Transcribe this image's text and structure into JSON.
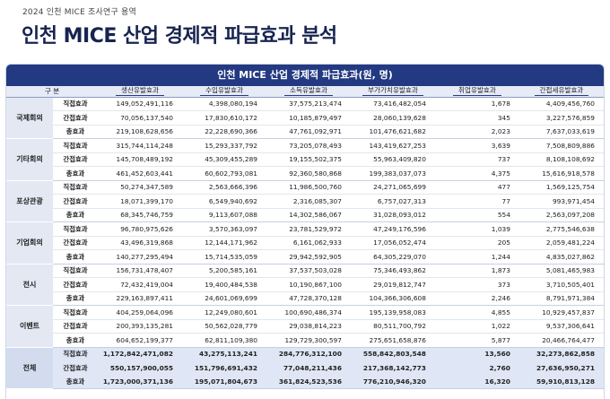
{
  "header": {
    "subtitle": "2024 인천 MICE 조사연구 용역",
    "title": "인천 MICE 산업 경제적 파급효과 분석"
  },
  "table": {
    "caption": "인천 MICE 산업 경제적 파급효과(원, 명)",
    "group_header": "구 분",
    "columns": [
      "생산유발효과",
      "수입유발효과",
      "소득유발효과",
      "부가가치유발효과",
      "취업유발효과",
      "간접세유발효과"
    ],
    "sub_labels": [
      "직접효과",
      "간접효과",
      "총효과"
    ],
    "groups": [
      {
        "name": "국제회의",
        "rows": [
          [
            "149,052,491,116",
            "4,398,080,194",
            "37,575,213,474",
            "73,416,482,054",
            "1,678",
            "4,409,456,760"
          ],
          [
            "70,056,137,540",
            "17,830,610,172",
            "10,185,879,497",
            "28,060,139,628",
            "345",
            "3,227,576,859"
          ],
          [
            "219,108,628,656",
            "22,228,690,366",
            "47,761,092,971",
            "101,476,621,682",
            "2,023",
            "7,637,033,619"
          ]
        ]
      },
      {
        "name": "기타회의",
        "rows": [
          [
            "315,744,114,248",
            "15,293,337,792",
            "73,205,078,493",
            "143,419,627,253",
            "3,639",
            "7,508,809,886"
          ],
          [
            "145,708,489,192",
            "45,309,455,289",
            "19,155,502,375",
            "55,963,409,820",
            "737",
            "8,108,108,692"
          ],
          [
            "461,452,603,441",
            "60,602,793,081",
            "92,360,580,868",
            "199,383,037,073",
            "4,375",
            "15,616,918,578"
          ]
        ]
      },
      {
        "name": "포상관광",
        "rows": [
          [
            "50,274,347,589",
            "2,563,666,396",
            "11,986,500,760",
            "24,271,065,699",
            "477",
            "1,569,125,754"
          ],
          [
            "18,071,399,170",
            "6,549,940,692",
            "2,316,085,307",
            "6,757,027,313",
            "77",
            "993,971,454"
          ],
          [
            "68,345,746,759",
            "9,113,607,088",
            "14,302,586,067",
            "31,028,093,012",
            "554",
            "2,563,097,208"
          ]
        ]
      },
      {
        "name": "기업회의",
        "rows": [
          [
            "96,780,975,626",
            "3,570,363,097",
            "23,781,529,972",
            "47,249,176,596",
            "1,039",
            "2,775,546,638"
          ],
          [
            "43,496,319,868",
            "12,144,171,962",
            "6,161,062,933",
            "17,056,052,474",
            "205",
            "2,059,481,224"
          ],
          [
            "140,277,295,494",
            "15,714,535,059",
            "29,942,592,905",
            "64,305,229,070",
            "1,244",
            "4,835,027,862"
          ]
        ]
      },
      {
        "name": "전시",
        "rows": [
          [
            "156,731,478,407",
            "5,200,585,161",
            "37,537,503,028",
            "75,346,493,862",
            "1,873",
            "5,081,465,983"
          ],
          [
            "72,432,419,004",
            "19,400,484,538",
            "10,190,867,100",
            "29,019,812,747",
            "373",
            "3,710,505,401"
          ],
          [
            "229,163,897,411",
            "24,601,069,699",
            "47,728,370,128",
            "104,366,306,608",
            "2,246",
            "8,791,971,384"
          ]
        ]
      },
      {
        "name": "이벤트",
        "rows": [
          [
            "404,259,064,096",
            "12,249,080,601",
            "100,690,486,374",
            "195,139,958,083",
            "4,855",
            "10,929,457,837"
          ],
          [
            "200,393,135,281",
            "50,562,028,779",
            "29,038,814,223",
            "80,511,700,792",
            "1,022",
            "9,537,306,641"
          ],
          [
            "604,652,199,377",
            "62,811,109,380",
            "129,729,300,597",
            "275,651,658,876",
            "5,877",
            "20,466,764,477"
          ]
        ]
      },
      {
        "name": "전체",
        "total": true,
        "rows": [
          [
            "1,172,842,471,082",
            "43,275,113,241",
            "284,776,312,100",
            "558,842,803,548",
            "13,560",
            "32,273,862,858"
          ],
          [
            "550,157,900,055",
            "151,796,691,432",
            "77,048,211,436",
            "217,368,142,773",
            "2,760",
            "27,636,950,271"
          ],
          [
            "1,723,000,371,136",
            "195,071,804,673",
            "361,824,523,536",
            "776,210,946,320",
            "16,320",
            "59,910,813,128"
          ]
        ]
      }
    ]
  }
}
